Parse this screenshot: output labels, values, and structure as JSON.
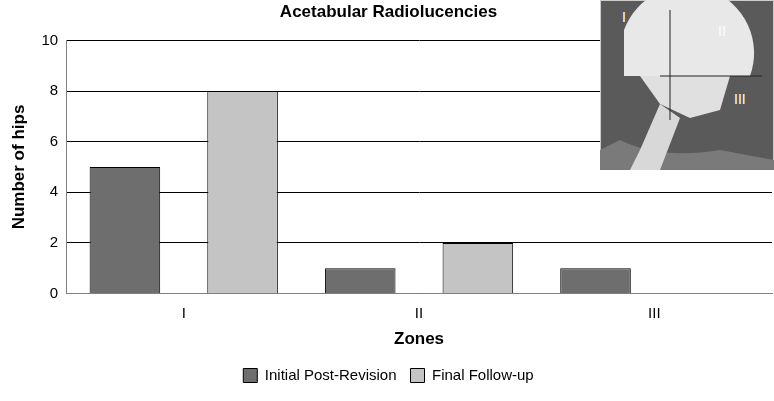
{
  "chart_data": {
    "type": "bar",
    "title": "Acetabular Radiolucencies",
    "x_label": "Zones",
    "y_label": "Number of hips",
    "categories": [
      "I",
      "II",
      "III"
    ],
    "series": [
      {
        "name": "Initial Post-Revision",
        "color": "#6e6e6e",
        "values": [
          5,
          1,
          1
        ]
      },
      {
        "name": "Final Follow-up",
        "color": "#c4c4c4",
        "values": [
          8,
          2,
          0
        ]
      }
    ],
    "ylim": [
      0,
      10
    ],
    "yticks": [
      0,
      2,
      4,
      6,
      8,
      10
    ],
    "grid": true,
    "legend": "bottom"
  }
}
